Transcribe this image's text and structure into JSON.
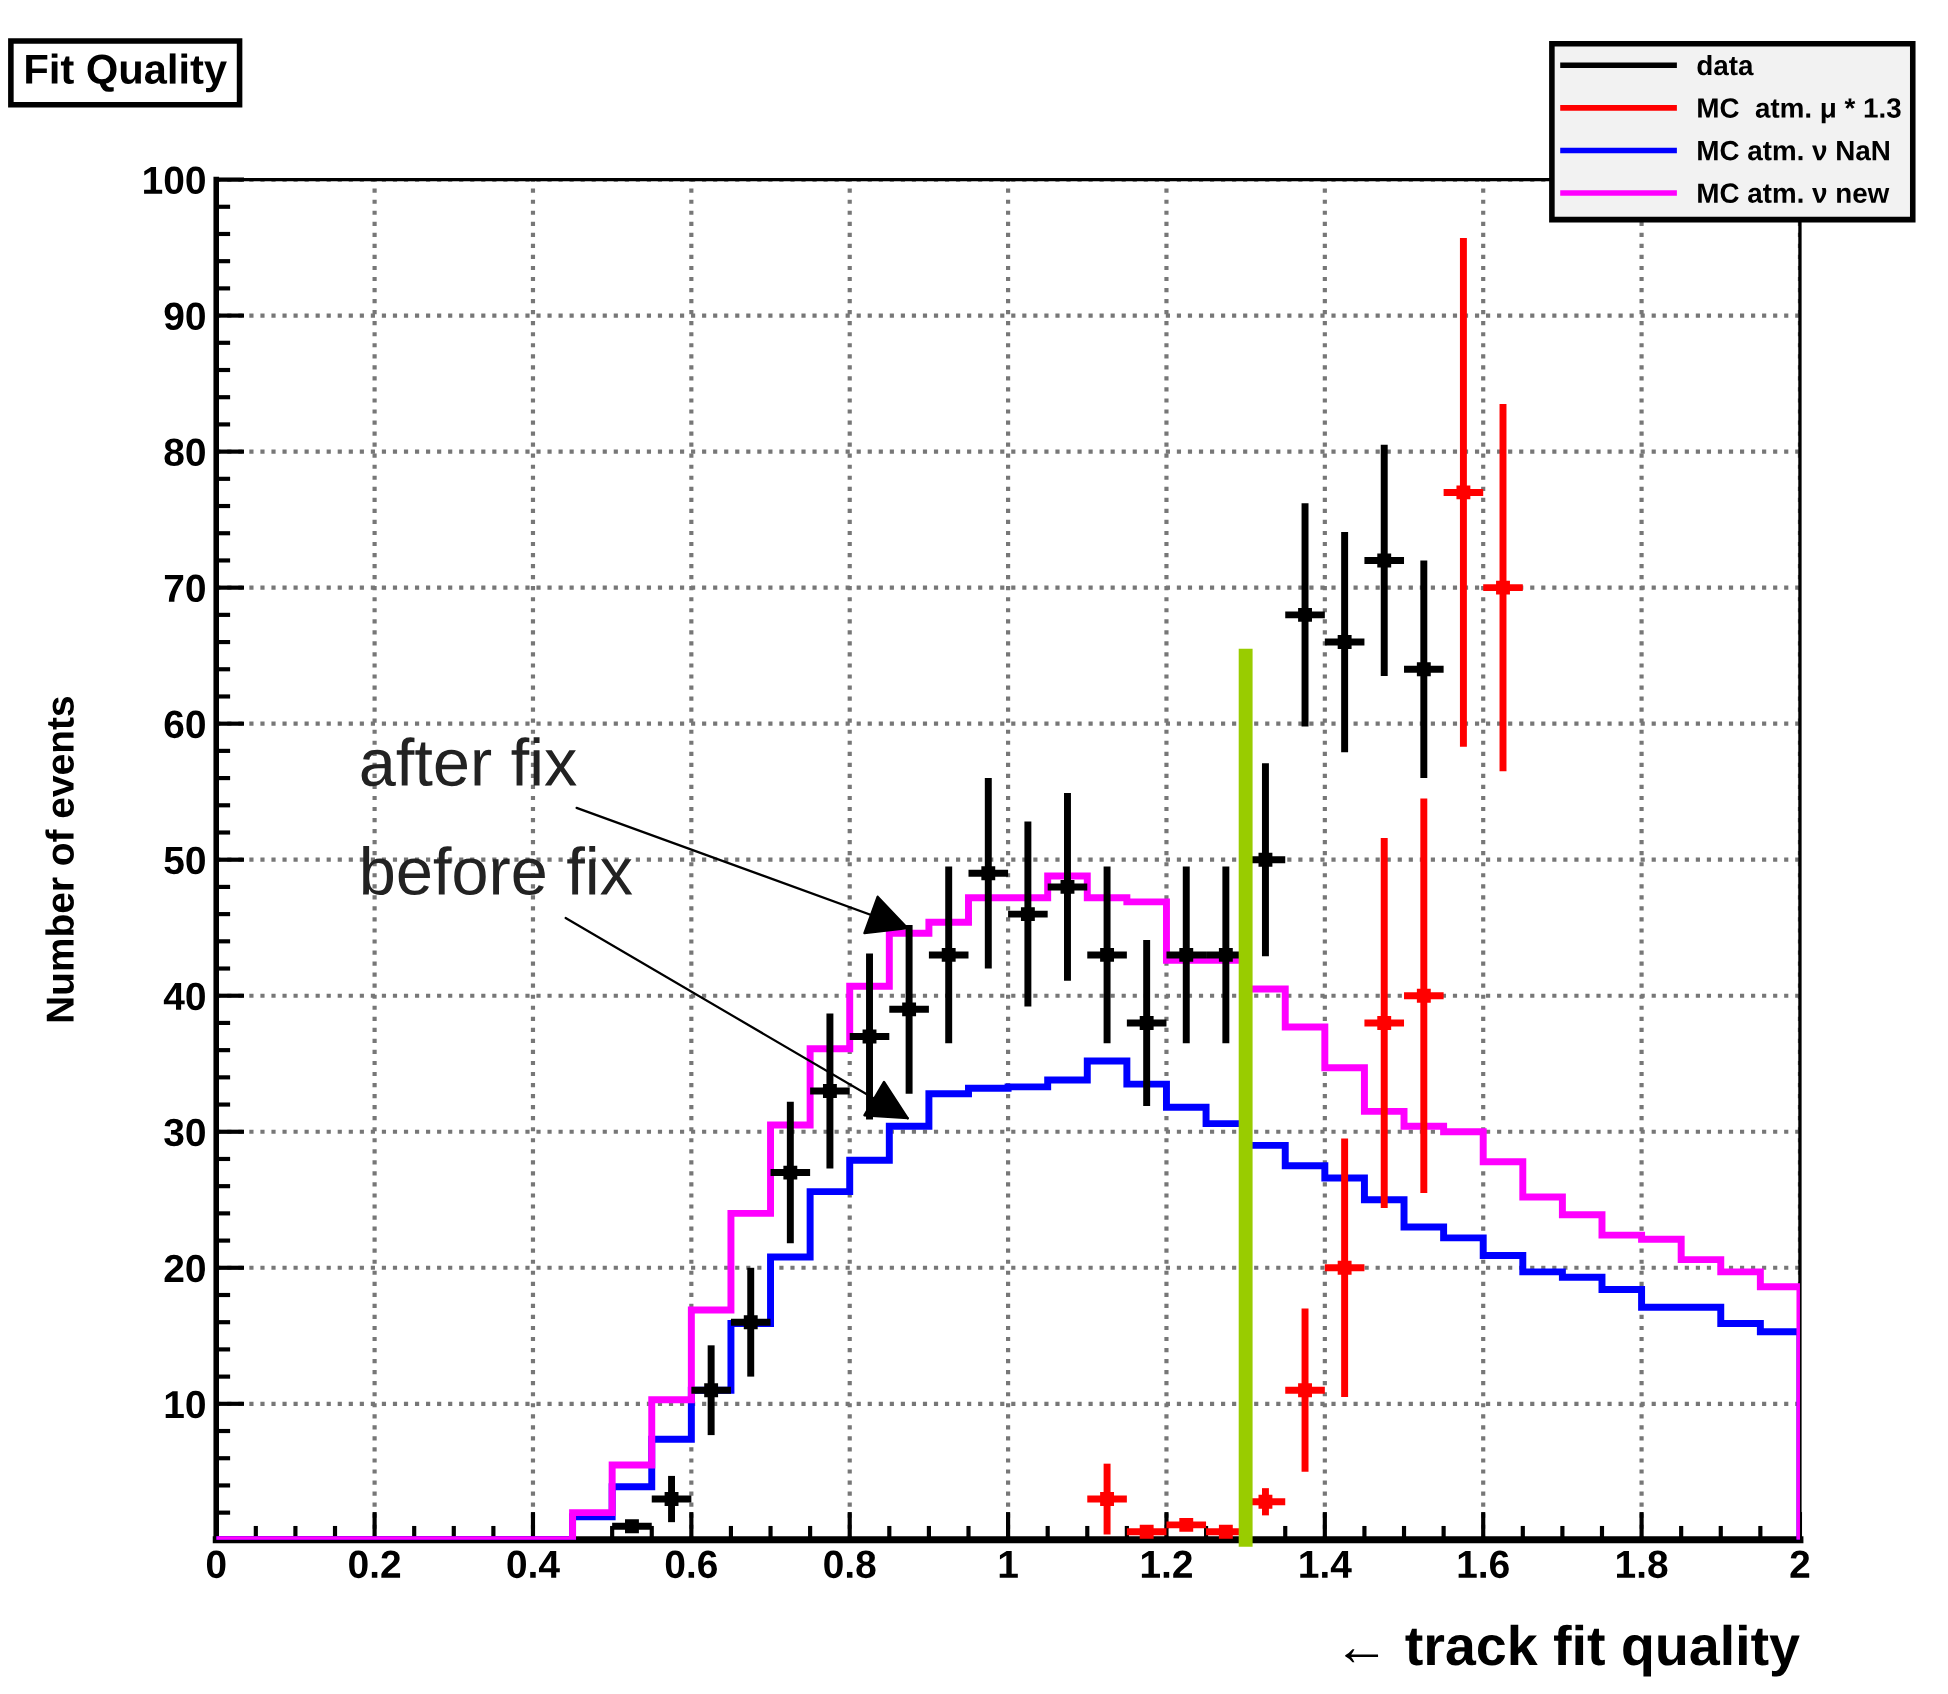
{
  "chart_data": {
    "type": "histogram",
    "title": "Fit Quality",
    "xlabel": "← track fit quality",
    "ylabel": "Number of events",
    "bins": [
      0,
      0.05,
      0.1,
      0.15,
      0.2,
      0.25,
      0.3,
      0.35,
      0.4,
      0.45,
      0.5,
      0.55,
      0.6,
      0.65,
      0.7,
      0.75,
      0.8,
      0.85,
      0.9,
      0.95,
      1.0,
      1.05,
      1.1,
      1.15,
      1.2,
      1.25,
      1.3,
      1.35,
      1.4,
      1.45,
      1.5,
      1.55,
      1.6,
      1.65,
      1.7,
      1.75,
      1.8,
      1.85,
      1.9,
      1.95,
      2.0
    ],
    "series": [
      {
        "name": "data",
        "type": "scatter",
        "marker": "square",
        "color": "#000000",
        "x": [
          0.525,
          0.575,
          0.625,
          0.675,
          0.725,
          0.775,
          0.825,
          0.875,
          0.925,
          0.975,
          1.025,
          1.075,
          1.125,
          1.175,
          1.225,
          1.275,
          1.325,
          1.375,
          1.425,
          1.475,
          1.525
        ],
        "values": [
          1,
          3,
          11,
          16,
          27,
          33,
          37,
          39,
          43,
          49,
          46,
          48,
          43,
          38,
          43,
          43,
          50,
          68,
          66,
          72,
          64
        ],
        "errors": [
          null,
          1.7,
          3.3,
          4,
          5.2,
          5.7,
          6.1,
          6.2,
          6.5,
          7,
          6.8,
          6.9,
          6.5,
          6.1,
          6.5,
          6.5,
          7.1,
          8.2,
          8.1,
          8.5,
          8
        ],
        "xerrors": [
          0.025,
          0.025,
          0.025,
          0.025,
          0.025,
          0.025,
          0.025,
          0.025,
          0.025,
          0.025,
          0.025,
          0.025,
          0.025,
          0.025,
          0.025,
          0.025,
          0.025,
          0.025,
          0.025,
          0.025,
          0.025
        ]
      },
      {
        "name": "MC  atm. μ * 1.3",
        "type": "scatter",
        "marker": "square",
        "color": "#ff0000",
        "x": [
          1.125,
          1.175,
          1.225,
          1.275,
          1.325,
          1.375,
          1.425,
          1.475,
          1.525,
          1.575,
          1.625
        ],
        "values": [
          3,
          0.6,
          1.1,
          0.6,
          2.8,
          11,
          20,
          38,
          40,
          77,
          70
        ],
        "errors": [
          2.6,
          null,
          null,
          null,
          1,
          6,
          9.5,
          13.6,
          14.5,
          18.7,
          13.5
        ],
        "xerrors": [
          0.025,
          0.025,
          0.025,
          0.025,
          0.025,
          0.025,
          0.025,
          0.025,
          0.025,
          0.025,
          0.025
        ]
      },
      {
        "name": "MC atm. ν NaN",
        "color": "#0000ff",
        "values": [
          0,
          0,
          0,
          0,
          0,
          0,
          0,
          0,
          0,
          1.7,
          3.9,
          7.4,
          11,
          15.9,
          20.8,
          25.6,
          27.9,
          30.4,
          32.8,
          33.2,
          33.3,
          33.8,
          35.2,
          33.5,
          31.8,
          30.6,
          29,
          27.5,
          26.6,
          25,
          23,
          22.2,
          20.9,
          19.7,
          19.3,
          18.4,
          17.1,
          17.1,
          15.9,
          15.3
        ]
      },
      {
        "name": "MC atm. ν new",
        "color": "#ff00ff",
        "values": [
          0,
          0,
          0,
          0,
          0,
          0,
          0,
          0,
          0,
          2,
          5.5,
          10.3,
          16.9,
          24,
          30.5,
          36.1,
          40.7,
          44.6,
          45.4,
          47.2,
          47.2,
          48.8,
          47.2,
          46.9,
          42.6,
          42.6,
          40.5,
          37.7,
          34.7,
          31.5,
          30.4,
          30,
          27.8,
          25.2,
          23.9,
          22.4,
          22.1,
          20.6,
          19.7,
          18.6
        ]
      },
      {
        "type": "line",
        "color": "#99cc00",
        "x": [
          1.3,
          1.3
        ],
        "values": [
          0,
          65
        ]
      }
    ],
    "annotations": [
      {
        "text": "after fix",
        "x": 0.876,
        "y": 44.9
      },
      {
        "text": "before fix",
        "x": 0.876,
        "y": 30.9
      }
    ],
    "xlim": [
      0,
      2
    ],
    "ylim": [
      0,
      100
    ],
    "xticks": [
      0,
      0.2,
      0.4,
      0.6,
      0.8,
      1,
      1.2,
      1.4,
      1.6,
      1.8,
      2
    ],
    "yticks": [
      10,
      20,
      30,
      40,
      50,
      60,
      70,
      80,
      90,
      100
    ],
    "grid": true,
    "legend": "top right"
  }
}
